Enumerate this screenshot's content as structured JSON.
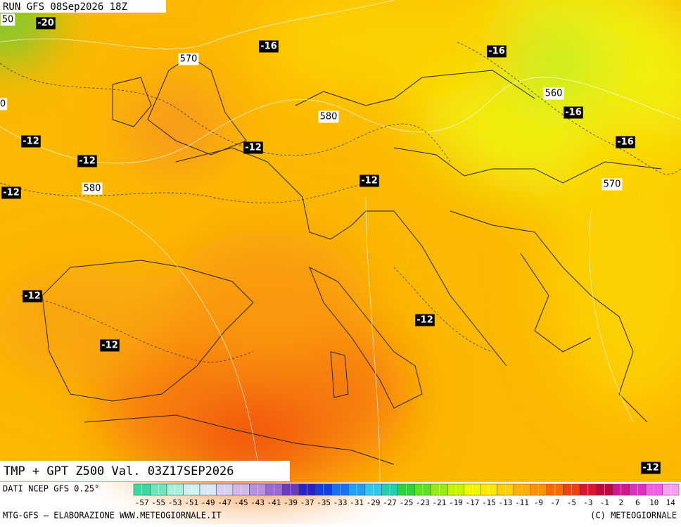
{
  "header": {
    "run": "RUN GFS 08Sep2026 18Z"
  },
  "map": {
    "title": "TMP + GPT Z500 Val. 03Z17SEP2026",
    "temperature_labels": [
      "-20",
      "-16",
      "-16",
      "-16",
      "-16",
      "-12",
      "-12",
      "-12",
      "-12",
      "-12",
      "-12",
      "-12",
      "-12",
      "-12"
    ],
    "height_labels": [
      "50",
      "570",
      "0",
      "580",
      "560",
      "580",
      "570"
    ]
  },
  "scale": {
    "source": "DATI NCEP GFS 0.25°",
    "labels": [
      "-57",
      "-55",
      "-53",
      "-51",
      "-49",
      "-47",
      "-45",
      "-43",
      "-41",
      "-39",
      "-37",
      "-35",
      "-33",
      "-31",
      "-29",
      "-27",
      "-25",
      "-23",
      "-21",
      "-19",
      "-17",
      "-15",
      "-13",
      "-11",
      "-9",
      "-7",
      "-5",
      "-3",
      "-1",
      "2",
      "6",
      "10",
      "14"
    ],
    "colors": [
      "#3ed6a0",
      "#6fe6bd",
      "#a6f2dc",
      "#cdf3f0",
      "#d8e8f5",
      "#d6d2f0",
      "#d2b8ec",
      "#b890e0",
      "#9a6ad0",
      "#6a3cb8",
      "#2a20c8",
      "#1440e0",
      "#1c70f0",
      "#22a0f4",
      "#30c8f0",
      "#20d0b0",
      "#30d040",
      "#60e020",
      "#98ec10",
      "#c8f400",
      "#f0f800",
      "#ffe800",
      "#ffd000",
      "#ffb000",
      "#ff9000",
      "#ff6a00",
      "#f04010",
      "#d81830",
      "#b80c40",
      "#d01890",
      "#e030c0",
      "#f060e0",
      "#f8a0f0"
    ]
  },
  "footer": {
    "left": "MTG-GFS — ELABORAZIONE WWW.METEOGIORNALE.IT",
    "right": "(C) METEOGIORNALE"
  }
}
